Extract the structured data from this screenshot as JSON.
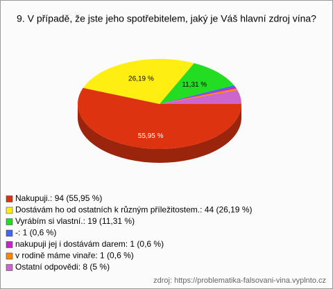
{
  "chart_data": {
    "type": "pie",
    "title": "9. V případě, že jste jeho spotřebitelem, jaký je Váš hlavní zdroj vína?",
    "categories": [
      "Nakupuji.: 94 (55,95 %)",
      "Dostávám ho od ostatních k různým příležitostem.: 44 (26,19 %)",
      "Vyrábím si vlastní.: 19 (11,31 %)",
      "-: 1 (0,6 %)",
      "nakupuji jej i dostávám darem: 1 (0,6 %)",
      "v rodině máme vinaře: 1 (0,6 %)",
      "Ostatní odpovědi: 8 (5 %)"
    ],
    "values": [
      55.95,
      26.19,
      11.31,
      0.6,
      0.6,
      0.6,
      5
    ],
    "value_labels": [
      "55,95 %",
      "26,19 %",
      "11,31 %",
      null,
      null,
      null,
      null
    ],
    "colors": [
      "#dd3311",
      "#ffee11",
      "#22dd22",
      "#4466ee",
      "#cc22cc",
      "#ff8800",
      "#cc66cc"
    ],
    "source": "zdroj: https://problematika-falsovani-vina.vyplnto.cz"
  }
}
